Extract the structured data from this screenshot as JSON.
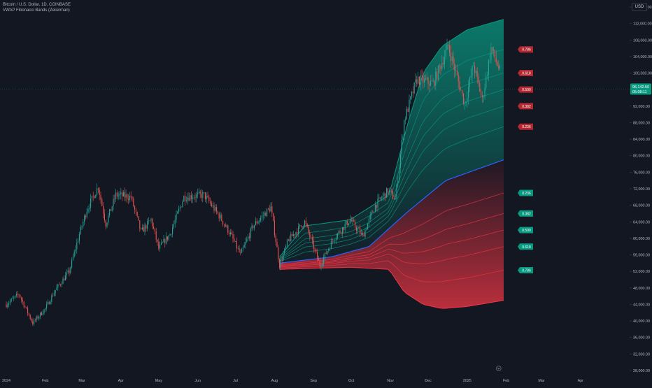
{
  "header": {
    "symbol_line": "Bitcoin / U.S. Dollar, 1D, COINBASE",
    "indicator_line": "VWAP Fibonacci Bands (Zeiierman)"
  },
  "price_axis": {
    "currency": "USD",
    "ticks": [
      "116,000.00",
      "112,000.00",
      "108,000.00",
      "104,000.00",
      "100,000.00",
      "96,000.00",
      "92,000.00",
      "88,000.00",
      "84,000.00",
      "80,000.00",
      "76,000.00",
      "72,000.00",
      "68,000.00",
      "64,000.00",
      "60,000.00",
      "56,000.00",
      "52,000.00",
      "48,000.00",
      "44,000.00",
      "40,000.00",
      "36,000.00",
      "32,000.00",
      "28,000.00"
    ],
    "current_price_label": "96,142.50",
    "current_time_label": "05:08:11"
  },
  "time_axis": {
    "ticks": [
      "2024",
      "Feb",
      "Mar",
      "Apr",
      "May",
      "Jun",
      "Jul",
      "Aug",
      "Sep",
      "Oct",
      "Nov",
      "Dec",
      "2025",
      "Feb",
      "Mar",
      "Apr"
    ]
  },
  "colors": {
    "background": "#131722",
    "up_candle": "#26a69a",
    "down_candle": "#ef5350",
    "vwap": "#2962ff",
    "upper_band": "#089981",
    "lower_band": "#f23645",
    "upper_label_bg": "#b22833",
    "lower_label_bg": "#089981",
    "price_label_bg": "#089981"
  },
  "chart_data": {
    "type": "candlestick",
    "title": "Bitcoin / U.S. Dollar, 1D, COINBASE",
    "ylim": [
      28000,
      116000
    ],
    "x_ticks": [
      "2024",
      "Feb",
      "Mar",
      "Apr",
      "May",
      "Jun",
      "Jul",
      "Aug",
      "Sep",
      "Oct",
      "Nov",
      "Dec",
      "2025",
      "Feb",
      "Mar",
      "Apr"
    ],
    "price_path": [
      [
        "2024-01-01",
        44000
      ],
      [
        "2024-01-11",
        46500
      ],
      [
        "2024-01-22",
        39500
      ],
      [
        "2024-02-01",
        43000
      ],
      [
        "2024-02-09",
        47500
      ],
      [
        "2024-02-20",
        52000
      ],
      [
        "2024-02-28",
        61000
      ],
      [
        "2024-03-05",
        67000
      ],
      [
        "2024-03-14",
        72500
      ],
      [
        "2024-03-20",
        63500
      ],
      [
        "2024-03-28",
        70500
      ],
      [
        "2024-04-09",
        70000
      ],
      [
        "2024-04-17",
        61500
      ],
      [
        "2024-04-25",
        64500
      ],
      [
        "2024-05-01",
        57500
      ],
      [
        "2024-05-10",
        61000
      ],
      [
        "2024-05-21",
        70000
      ],
      [
        "2024-06-06",
        70500
      ],
      [
        "2024-06-18",
        65500
      ],
      [
        "2024-06-27",
        61000
      ],
      [
        "2024-07-05",
        56000
      ],
      [
        "2024-07-15",
        63000
      ],
      [
        "2024-07-29",
        67500
      ],
      [
        "2024-08-05",
        53500
      ],
      [
        "2024-08-12",
        59500
      ],
      [
        "2024-08-25",
        64000
      ],
      [
        "2024-09-06",
        53500
      ],
      [
        "2024-09-17",
        60000
      ],
      [
        "2024-09-30",
        64500
      ],
      [
        "2024-10-10",
        60500
      ],
      [
        "2024-10-20",
        68000
      ],
      [
        "2024-10-30",
        71500
      ],
      [
        "2024-11-05",
        69500
      ],
      [
        "2024-11-12",
        88500
      ],
      [
        "2024-11-22",
        98500
      ],
      [
        "2024-12-05",
        97500
      ],
      [
        "2024-12-17",
        106500
      ],
      [
        "2024-12-30",
        92500
      ],
      [
        "2025-01-06",
        102000
      ],
      [
        "2025-01-13",
        93500
      ],
      [
        "2025-01-20",
        106000
      ],
      [
        "2025-01-27",
        100500
      ]
    ],
    "vwap_line": [
      [
        "2024-08-05",
        54000
      ],
      [
        "2024-09-15",
        55500
      ],
      [
        "2024-10-15",
        58000
      ],
      [
        "2024-11-15",
        66500
      ],
      [
        "2024-12-15",
        74000
      ],
      [
        "2025-01-30",
        79000
      ]
    ],
    "upper_band_outer": [
      [
        "2024-08-05",
        55500
      ],
      [
        "2024-08-25",
        63000
      ],
      [
        "2024-09-30",
        64500
      ],
      [
        "2024-10-31",
        70500
      ],
      [
        "2024-11-15",
        88000
      ],
      [
        "2024-11-27",
        100000
      ],
      [
        "2024-12-12",
        106500
      ],
      [
        "2025-01-01",
        110500
      ],
      [
        "2025-01-30",
        113000
      ]
    ],
    "lower_band_outer": [
      [
        "2024-08-05",
        52500
      ],
      [
        "2024-09-30",
        53000
      ],
      [
        "2024-10-31",
        52500
      ],
      [
        "2024-11-12",
        47000
      ],
      [
        "2024-11-27",
        44000
      ],
      [
        "2024-12-12",
        43000
      ],
      [
        "2025-01-01",
        43500
      ],
      [
        "2025-01-30",
        45000
      ]
    ],
    "fib_levels": [
      "0.236",
      "0.382",
      "0.500",
      "0.618",
      "0.786"
    ],
    "legend_tags": {
      "upper": [
        "0.786",
        "0.618",
        "0.500",
        "0.382",
        "0.236"
      ],
      "lower": [
        "0.236",
        "0.382",
        "0.500",
        "0.618",
        "0.786"
      ]
    },
    "last_price": 96142.5,
    "grid": false
  }
}
